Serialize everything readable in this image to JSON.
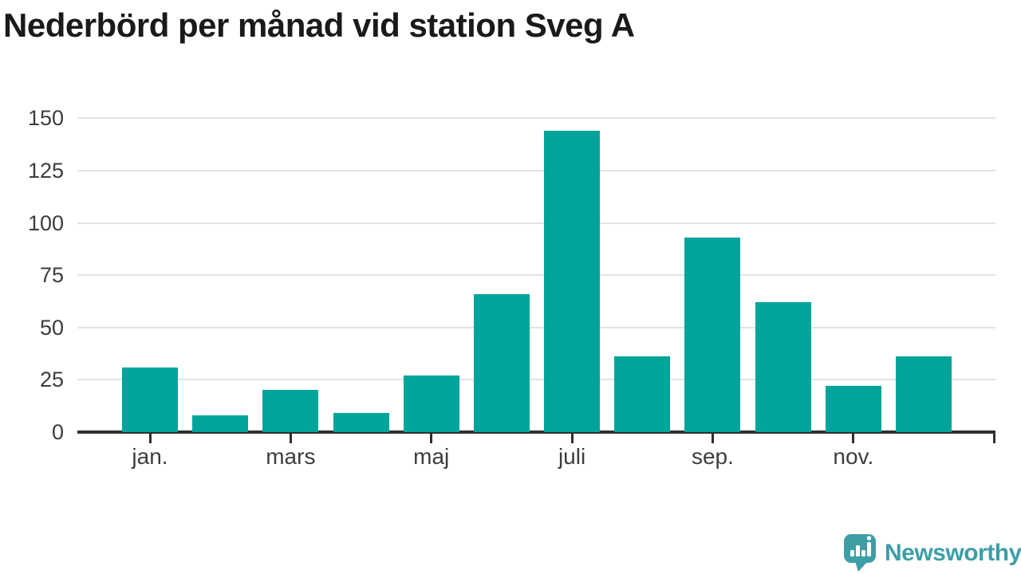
{
  "page": {
    "background": "#ffffff"
  },
  "chart_data": {
    "type": "bar",
    "title": "Nederbörd per månad vid station Sveg A",
    "categories": [
      "jan.",
      "",
      "mars",
      "",
      "maj",
      "",
      "juli",
      "",
      "sep.",
      "",
      "nov.",
      ""
    ],
    "values": [
      31,
      8,
      20,
      9,
      27,
      66,
      144,
      36,
      93,
      62,
      22,
      36
    ],
    "visible_x_tick_labels": [
      "jan.",
      "mars",
      "maj",
      "juli",
      "sep.",
      "nov."
    ],
    "y_ticks": [
      0,
      25,
      50,
      75,
      100,
      125,
      150
    ],
    "ylim": [
      0,
      160
    ],
    "xlabel": "",
    "ylabel": "",
    "grid": true,
    "legend": "none",
    "bar_color": "#00a49b"
  },
  "colors": {
    "bar": "#00a49b",
    "axis": "#2f2f2f",
    "gridline": "#e3e3e3",
    "title_text": "#1a1a1a",
    "tick_label_text": "#3d3d3d",
    "brand_teal": "#3d9ea6"
  },
  "footer": {
    "brand": "Newsworthy",
    "logo_icon": "newsworthy-speech-bubble-bar-chart-icon"
  }
}
